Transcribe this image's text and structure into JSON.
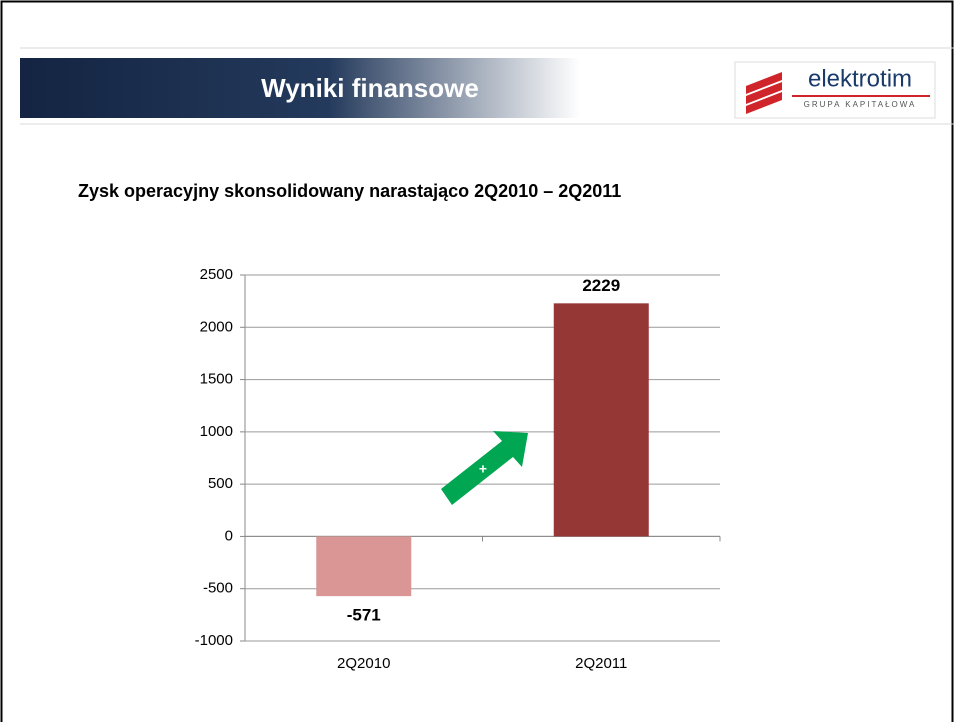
{
  "header": {
    "title": "Wyniki finansowe",
    "logo": "elektrotim",
    "logo_subtitle": "GRUPA KAPITAŁOWA"
  },
  "chart_data": {
    "type": "bar",
    "title": "Zysk operacyjny skonsolidowany narastająco 2Q2010 – 2Q2011",
    "categories": [
      "2Q2010",
      "2Q2011"
    ],
    "values": [
      -571,
      2229
    ],
    "colors": [
      "#d99694",
      "#953735"
    ],
    "ylim": [
      -1000,
      2500
    ],
    "yticks": [
      -1000,
      -500,
      0,
      500,
      1000,
      1500,
      2000,
      2500
    ],
    "grid": true,
    "annotation": "+"
  }
}
